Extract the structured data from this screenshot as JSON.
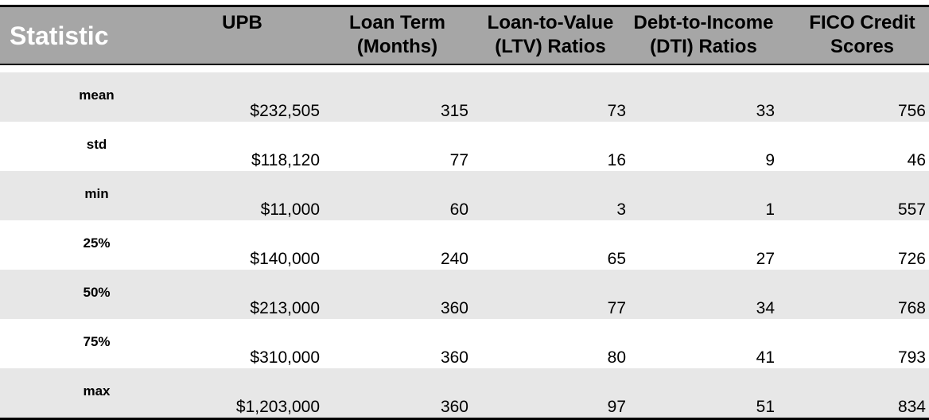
{
  "table": {
    "headers": [
      "Statistic",
      "UPB",
      "Loan Term (Months)",
      "Loan-to-Value (LTV) Ratios",
      "Debt-to-Income (DTI) Ratios",
      "FICO Credit Scores"
    ],
    "header_lines": [
      [
        "Statistic"
      ],
      [
        "UPB"
      ],
      [
        "Loan Term",
        "(Months)"
      ],
      [
        "Loan-to-Value",
        "(LTV) Ratios"
      ],
      [
        "Debt-to-Income",
        "(DTI) Ratios"
      ],
      [
        "FICO Credit",
        "Scores"
      ]
    ],
    "rows": [
      [
        "mean",
        "$232,505",
        "315",
        "73",
        "33",
        "756"
      ],
      [
        "std",
        "$118,120",
        "77",
        "16",
        "9",
        "46"
      ],
      [
        "min",
        "$11,000",
        "60",
        "3",
        "1",
        "557"
      ],
      [
        "25%",
        "$140,000",
        "240",
        "65",
        "27",
        "726"
      ],
      [
        "50%",
        "$213,000",
        "360",
        "77",
        "34",
        "768"
      ],
      [
        "75%",
        "$310,000",
        "360",
        "80",
        "41",
        "793"
      ],
      [
        "max",
        "$1,203,000",
        "360",
        "97",
        "51",
        "834"
      ]
    ]
  },
  "colors": {
    "header_background": "#a6a6a6",
    "stripe_background": "#e7e7e7",
    "statistic_header_text": "#ffffff"
  }
}
